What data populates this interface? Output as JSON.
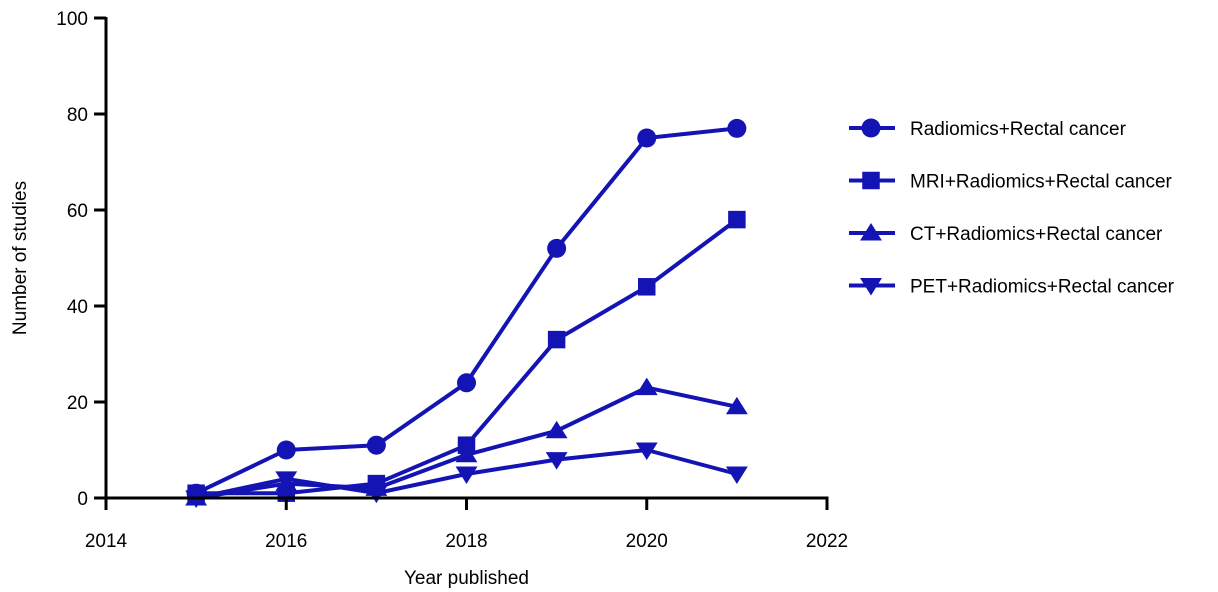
{
  "chart_data": {
    "type": "line",
    "title": "",
    "xlabel": "Year published",
    "ylabel": "Number of studies",
    "xlim": [
      2014,
      2022
    ],
    "ylim": [
      0,
      100
    ],
    "x_ticks": [
      2014,
      2016,
      2018,
      2020,
      2022
    ],
    "y_ticks": [
      0,
      20,
      40,
      60,
      80,
      100
    ],
    "grid": false,
    "legend_position": "right",
    "line_color": "#1414b4",
    "x": [
      2015,
      2016,
      2017,
      2018,
      2019,
      2020,
      2021
    ],
    "series": [
      {
        "name": "Radiomics+Rectal cancer",
        "marker": "circle",
        "values": [
          1,
          10,
          11,
          24,
          52,
          75,
          77
        ]
      },
      {
        "name": "MRI+Radiomics+Rectal cancer",
        "marker": "square",
        "values": [
          1,
          1,
          3,
          11,
          33,
          44,
          58
        ]
      },
      {
        "name": "CT+Radiomics+Rectal cancer",
        "marker": "triangle-up",
        "values": [
          0,
          3,
          2,
          9,
          14,
          23,
          19
        ]
      },
      {
        "name": "PET+Radiomics+Rectal cancer",
        "marker": "triangle-down",
        "values": [
          0,
          4,
          1,
          5,
          8,
          10,
          5
        ]
      }
    ]
  }
}
